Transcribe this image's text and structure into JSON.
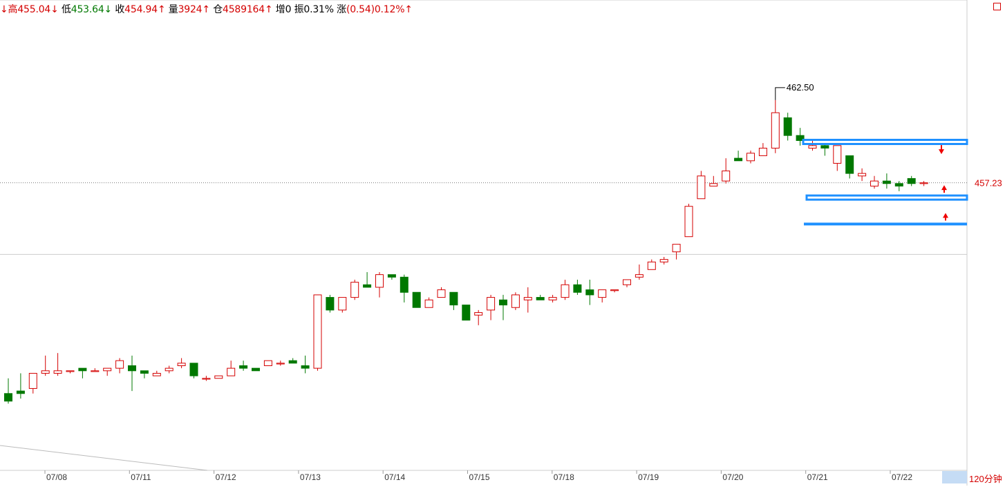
{
  "hud": {
    "high_label": "高",
    "high_value": "455.04↓",
    "low_label": "低",
    "low_value": "453.64↓",
    "close_label": "收",
    "close_value": "454.94↑",
    "volume_label": "量",
    "volume_value": "3924↑",
    "oi_label": "仓",
    "oi_value": "4589164↑",
    "oi_change_label": "增",
    "oi_change_value": "0",
    "amplitude_label": "振",
    "amplitude_value": "0.31%",
    "change_label": "涨",
    "change_value": "(0.54)0.12%↑"
  },
  "period_label": "120分钟",
  "colors": {
    "up": "#d40000",
    "down": "#007800",
    "zone": "#1e90ff",
    "arrow": "#ee0000",
    "price_label": "#d40000"
  },
  "chart_data": {
    "type": "candlestick",
    "x_tick_labels": [
      "07/08",
      "07/11",
      "07/12",
      "07/13",
      "07/14",
      "07/15",
      "07/18",
      "07/19",
      "07/20",
      "07/21",
      "07/22"
    ],
    "current_price_label": "457.23",
    "max_price_label": "462.50",
    "ylim": [
      446.0,
      463.8
    ],
    "horizontal_lines": [
      457.23,
      454.4
    ],
    "zones": [
      {
        "type": "box",
        "low": 458.8,
        "high": 458.9
      },
      {
        "type": "box",
        "low": 456.6,
        "high": 456.7
      },
      {
        "type": "line",
        "value": 455.6
      }
    ],
    "arrows": [
      {
        "direction": "down",
        "near": 458.5
      },
      {
        "direction": "up",
        "near": 457.0
      },
      {
        "direction": "up",
        "near": 455.9
      }
    ],
    "candles": [
      [
        448.9,
        448.6,
        449.5,
        448.5
      ],
      [
        449.0,
        448.9,
        449.7,
        448.7
      ],
      [
        449.1,
        449.7,
        449.7,
        448.9
      ],
      [
        449.7,
        449.8,
        450.4,
        449.6
      ],
      [
        449.7,
        449.8,
        450.5,
        449.6
      ],
      [
        449.8,
        449.8,
        449.8,
        449.7
      ],
      [
        449.9,
        449.8,
        449.9,
        449.5
      ],
      [
        449.8,
        449.8,
        449.9,
        449.8
      ],
      [
        449.8,
        449.9,
        449.9,
        449.6
      ],
      [
        449.9,
        450.2,
        450.3,
        449.7
      ],
      [
        450.0,
        449.8,
        450.4,
        449.0
      ],
      [
        449.8,
        449.7,
        449.8,
        449.5
      ],
      [
        449.6,
        449.7,
        449.8,
        449.6
      ],
      [
        449.8,
        449.9,
        450.0,
        449.7
      ],
      [
        450.0,
        450.1,
        450.3,
        449.9
      ],
      [
        450.1,
        449.6,
        450.1,
        449.5
      ],
      [
        449.5,
        449.5,
        449.6,
        449.4
      ],
      [
        449.5,
        449.6,
        449.6,
        449.5
      ],
      [
        449.6,
        449.9,
        450.2,
        449.6
      ],
      [
        450.0,
        449.9,
        450.2,
        449.8
      ],
      [
        449.9,
        449.8,
        449.9,
        449.8
      ],
      [
        450.0,
        450.2,
        450.2,
        450.0
      ],
      [
        450.1,
        450.1,
        450.2,
        450.0
      ],
      [
        450.2,
        450.1,
        450.3,
        450.1
      ],
      [
        450.0,
        449.9,
        450.4,
        449.7
      ],
      [
        449.9,
        452.8,
        452.8,
        449.8
      ],
      [
        452.7,
        452.2,
        452.8,
        452.1
      ],
      [
        452.2,
        452.7,
        452.7,
        452.1
      ],
      [
        452.7,
        453.3,
        453.4,
        452.6
      ],
      [
        453.2,
        453.1,
        453.7,
        453.1
      ],
      [
        453.1,
        453.6,
        453.7,
        452.7
      ],
      [
        453.6,
        453.5,
        453.6,
        453.4
      ],
      [
        453.5,
        452.9,
        453.6,
        452.5
      ],
      [
        452.9,
        452.3,
        452.9,
        452.3
      ],
      [
        452.3,
        452.6,
        452.7,
        452.3
      ],
      [
        452.7,
        453.0,
        453.1,
        452.7
      ],
      [
        452.9,
        452.4,
        452.9,
        452.2
      ],
      [
        452.4,
        451.8,
        452.4,
        451.8
      ],
      [
        452.0,
        452.1,
        452.2,
        451.6
      ],
      [
        452.2,
        452.7,
        452.8,
        451.8
      ],
      [
        452.6,
        452.4,
        452.8,
        451.8
      ],
      [
        452.3,
        452.8,
        452.9,
        452.2
      ],
      [
        452.6,
        452.7,
        453.1,
        452.1
      ],
      [
        452.7,
        452.6,
        452.8,
        452.6
      ],
      [
        452.6,
        452.7,
        452.8,
        452.5
      ],
      [
        452.7,
        453.2,
        453.4,
        452.6
      ],
      [
        453.2,
        452.9,
        453.4,
        452.8
      ],
      [
        453.0,
        452.8,
        453.4,
        452.4
      ],
      [
        452.7,
        453.0,
        453.0,
        452.5
      ],
      [
        453.0,
        453.0,
        453.0,
        452.9
      ],
      [
        453.2,
        453.4,
        453.4,
        453.1
      ],
      [
        453.5,
        453.6,
        454.0,
        453.4
      ],
      [
        453.8,
        454.1,
        454.2,
        453.8
      ],
      [
        454.1,
        454.2,
        454.3,
        454.0
      ],
      [
        454.5,
        454.8,
        454.8,
        454.2
      ],
      [
        455.1,
        456.3,
        456.4,
        455.1
      ],
      [
        456.6,
        457.5,
        457.7,
        456.6
      ],
      [
        457.1,
        457.2,
        457.5,
        457.1
      ],
      [
        457.3,
        457.7,
        458.2,
        457.2
      ],
      [
        458.2,
        458.1,
        458.5,
        458.1
      ],
      [
        458.1,
        458.4,
        458.5,
        458.0
      ],
      [
        458.3,
        458.6,
        458.8,
        458.3
      ],
      [
        458.6,
        460.0,
        460.5,
        458.4
      ],
      [
        459.8,
        459.1,
        460.0,
        458.9
      ],
      [
        459.1,
        458.9,
        459.4,
        458.7
      ],
      [
        458.6,
        458.7,
        458.9,
        458.5
      ],
      [
        458.7,
        458.6,
        458.8,
        458.3
      ],
      [
        458.0,
        458.7,
        458.7,
        457.7
      ],
      [
        458.3,
        457.6,
        458.3,
        457.4
      ],
      [
        457.5,
        457.6,
        457.8,
        457.3
      ],
      [
        457.1,
        457.3,
        457.5,
        457.0
      ],
      [
        457.3,
        457.2,
        457.6,
        457.0
      ],
      [
        457.2,
        457.1,
        457.3,
        456.9
      ],
      [
        457.4,
        457.2,
        457.5,
        457.1
      ],
      [
        457.2,
        457.23,
        457.3,
        457.1
      ]
    ]
  }
}
